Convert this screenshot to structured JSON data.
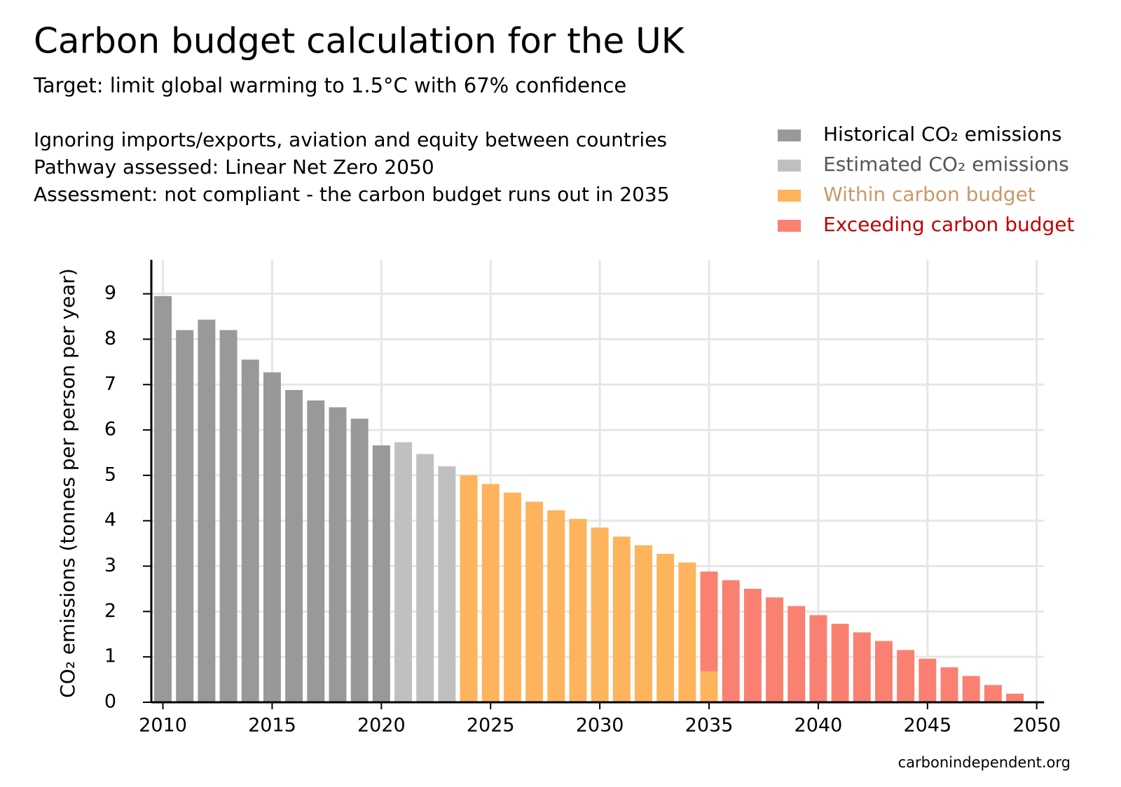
{
  "chart_data": {
    "type": "bar",
    "title": "Carbon budget calculation for the UK",
    "subtitle": "Target: limit global warming to 1.5°C with 67% confidence",
    "notes": [
      "Ignoring imports/exports, aviation and equity between countries",
      "Pathway assessed: Linear Net Zero 2050",
      "Assessment: not compliant - the carbon budget runs out in 2035"
    ],
    "y_label": "CO₂ emissions (tonnes per person per year)",
    "source": "carbonindependent.org",
    "stacked": true,
    "grid": true,
    "legend": "top-right",
    "x": [
      2010,
      2011,
      2012,
      2013,
      2014,
      2015,
      2016,
      2017,
      2018,
      2019,
      2020,
      2021,
      2022,
      2023,
      2024,
      2025,
      2026,
      2027,
      2028,
      2029,
      2030,
      2031,
      2032,
      2033,
      2034,
      2035,
      2036,
      2037,
      2038,
      2039,
      2040,
      2041,
      2042,
      2043,
      2044,
      2045,
      2046,
      2047,
      2048,
      2049,
      2050
    ],
    "series": [
      {
        "name": "Historical CO₂ emissions",
        "color": "#999999",
        "label_color": "#000000",
        "values": [
          8.95,
          8.2,
          8.43,
          8.2,
          7.55,
          7.27,
          6.88,
          6.65,
          6.5,
          6.25,
          5.66,
          null,
          null,
          null,
          null,
          null,
          null,
          null,
          null,
          null,
          null,
          null,
          null,
          null,
          null,
          null,
          null,
          null,
          null,
          null,
          null,
          null,
          null,
          null,
          null,
          null,
          null,
          null,
          null,
          null,
          null
        ]
      },
      {
        "name": "Estimated CO₂ emissions",
        "color": "#c0c0c0",
        "label_color": "#555555",
        "values": [
          null,
          null,
          null,
          null,
          null,
          null,
          null,
          null,
          null,
          null,
          null,
          5.73,
          5.47,
          5.2,
          null,
          null,
          null,
          null,
          null,
          null,
          null,
          null,
          null,
          null,
          null,
          null,
          null,
          null,
          null,
          null,
          null,
          null,
          null,
          null,
          null,
          null,
          null,
          null,
          null,
          null,
          null
        ]
      },
      {
        "name": "Within carbon budget",
        "color": "#fdb45c",
        "label_color": "#c8986a",
        "values": [
          null,
          null,
          null,
          null,
          null,
          null,
          null,
          null,
          null,
          null,
          null,
          null,
          null,
          null,
          5.0,
          4.81,
          4.62,
          4.42,
          4.23,
          4.04,
          3.85,
          3.65,
          3.46,
          3.27,
          3.08,
          0.68,
          null,
          null,
          null,
          null,
          null,
          null,
          null,
          null,
          null,
          null,
          null,
          null,
          null,
          null,
          null
        ]
      },
      {
        "name": "Exceeding carbon budget",
        "color": "#fa8072",
        "label_color": "#c00000",
        "values": [
          null,
          null,
          null,
          null,
          null,
          null,
          null,
          null,
          null,
          null,
          null,
          null,
          null,
          null,
          null,
          null,
          null,
          null,
          null,
          null,
          null,
          null,
          null,
          null,
          null,
          2.2,
          2.69,
          2.5,
          2.31,
          2.12,
          1.92,
          1.73,
          1.54,
          1.35,
          1.15,
          0.96,
          0.77,
          0.58,
          0.38,
          0.19,
          0
        ]
      }
    ],
    "xlim": [
      2009.47,
      2050.33
    ],
    "xticks": [
      2010,
      2015,
      2020,
      2025,
      2030,
      2035,
      2040,
      2045,
      2050
    ],
    "ylim": [
      0,
      9.75
    ],
    "yticks": [
      0,
      1,
      2,
      3,
      4,
      5,
      6,
      7,
      8,
      9
    ]
  }
}
